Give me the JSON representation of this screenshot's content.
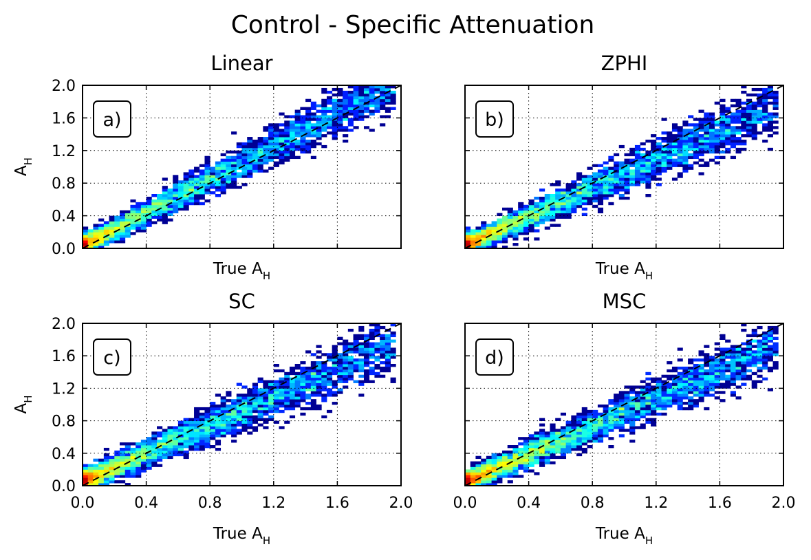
{
  "figure": {
    "title": "Control - Specific Attenuation"
  },
  "chart_data": [
    {
      "type": "heatmap",
      "title": "Linear",
      "panel_label": "a)",
      "xlabel_main": "True A",
      "xlabel_sub": "H",
      "ylabel_main": "A",
      "ylabel_sub": "H",
      "x_tick_labels_shown": false,
      "y_tick_labels_shown": true,
      "xlim": [
        0,
        2.0
      ],
      "ylim": [
        0,
        2.0
      ],
      "xticks": [
        "0.0",
        "0.4",
        "0.8",
        "1.2",
        "1.6",
        "2.0"
      ],
      "yticks": [
        "0.0",
        "0.4",
        "0.8",
        "1.2",
        "1.6",
        "2.0"
      ],
      "grid": true,
      "colormap": "jet",
      "one_to_one_line": true,
      "density": {
        "slope": 1.02,
        "intercept": 0.03,
        "spread": 0.055,
        "seed": 11
      }
    },
    {
      "type": "heatmap",
      "title": "ZPHI",
      "panel_label": "b)",
      "xlabel_main": "True A",
      "xlabel_sub": "H",
      "ylabel_main": "",
      "ylabel_sub": "",
      "x_tick_labels_shown": false,
      "y_tick_labels_shown": false,
      "xlim": [
        0,
        2.0
      ],
      "ylim": [
        0,
        2.0
      ],
      "xticks": [
        "0.0",
        "0.4",
        "0.8",
        "1.2",
        "1.6",
        "2.0"
      ],
      "yticks": [
        "0.0",
        "0.4",
        "0.8",
        "1.2",
        "1.6",
        "2.0"
      ],
      "grid": true,
      "colormap": "jet",
      "one_to_one_line": true,
      "density": {
        "slope": 0.87,
        "intercept": 0.04,
        "spread": 0.06,
        "seed": 23
      }
    },
    {
      "type": "heatmap",
      "title": "SC",
      "panel_label": "c)",
      "xlabel_main": "True A",
      "xlabel_sub": "H",
      "ylabel_main": "A",
      "ylabel_sub": "H",
      "x_tick_labels_shown": true,
      "y_tick_labels_shown": true,
      "xlim": [
        0,
        2.0
      ],
      "ylim": [
        0,
        2.0
      ],
      "xticks": [
        "0.0",
        "0.4",
        "0.8",
        "1.2",
        "1.6",
        "2.0"
      ],
      "yticks": [
        "0.0",
        "0.4",
        "0.8",
        "1.2",
        "1.6",
        "2.0"
      ],
      "grid": true,
      "colormap": "jet",
      "one_to_one_line": true,
      "density": {
        "slope": 0.86,
        "intercept": 0.05,
        "spread": 0.065,
        "seed": 37
      }
    },
    {
      "type": "heatmap",
      "title": "MSC",
      "panel_label": "d)",
      "xlabel_main": "True A",
      "xlabel_sub": "H",
      "ylabel_main": "",
      "ylabel_sub": "",
      "x_tick_labels_shown": true,
      "y_tick_labels_shown": false,
      "xlim": [
        0,
        2.0
      ],
      "ylim": [
        0,
        2.0
      ],
      "xticks": [
        "0.0",
        "0.4",
        "0.8",
        "1.2",
        "1.6",
        "2.0"
      ],
      "yticks": [
        "0.0",
        "0.4",
        "0.8",
        "1.2",
        "1.6",
        "2.0"
      ],
      "grid": true,
      "colormap": "jet",
      "one_to_one_line": true,
      "density": {
        "slope": 0.86,
        "intercept": 0.04,
        "spread": 0.06,
        "seed": 51
      }
    }
  ]
}
